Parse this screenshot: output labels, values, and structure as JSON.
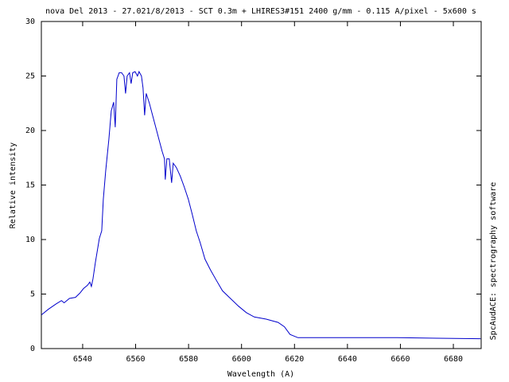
{
  "chart_data": {
    "type": "line",
    "title": "nova Del 2013 - 27.021/8/2013 - SCT 0.3m + LHIRES3#151 2400 g/mm - 0.115 A/pixel - 5x600 s",
    "x_label": "Wavelength (A)",
    "y_label": "Relative intensity",
    "side_note": "SpcAudACE: spectrography software",
    "x": [
      6524.5,
      6527,
      6530,
      6532,
      6533,
      6535,
      6537.3,
      6539,
      6540.3,
      6541.8,
      6542.7,
      6543.3,
      6543.9,
      6544.8,
      6546.3,
      6547.2,
      6547.8,
      6548.7,
      6549.9,
      6550.8,
      6551.7,
      6552.3,
      6552.9,
      6553.8,
      6554.7,
      6555.6,
      6556.2,
      6556.8,
      6557.7,
      6558.3,
      6558.9,
      6559.8,
      6560.7,
      6561.3,
      6562.2,
      6562.8,
      6563.4,
      6564.0,
      6565.2,
      6566.4,
      6567.6,
      6568.8,
      6570,
      6570.9,
      6571.2,
      6571.8,
      6572.7,
      6573.6,
      6574.2,
      6575.4,
      6576.9,
      6578.4,
      6579.9,
      6581.4,
      6582.9,
      6584.4,
      6586.2,
      6588.3,
      6590.4,
      6592.8,
      6595.8,
      6598.8,
      6601.8,
      6604.8,
      6609.3,
      6613.8,
      6616.2,
      6618.3,
      6621.3,
      6628.8,
      6643.8,
      6658.8,
      6673.8,
      6690.3
    ],
    "series": [
      {
        "name": "spectrum",
        "color": "#0000cc",
        "values": [
          3.1,
          3.6,
          4.1,
          4.4,
          4.2,
          4.6,
          4.7,
          5.1,
          5.5,
          5.8,
          6.1,
          5.7,
          6.4,
          7.9,
          10.1,
          10.8,
          13.7,
          16.3,
          19.2,
          21.8,
          22.6,
          20.3,
          24.7,
          25.3,
          25.3,
          25.0,
          23.4,
          25.0,
          25.3,
          24.3,
          25.3,
          25.4,
          25.0,
          25.4,
          25.0,
          23.9,
          21.4,
          23.4,
          22.5,
          21.4,
          20.3,
          19.2,
          18.1,
          17.4,
          15.5,
          17.4,
          17.4,
          15.2,
          17.0,
          16.6,
          15.8,
          14.8,
          13.7,
          12.3,
          10.8,
          9.7,
          8.2,
          7.2,
          6.3,
          5.3,
          4.6,
          3.9,
          3.3,
          2.9,
          2.7,
          2.4,
          2.0,
          1.3,
          1.0,
          1.0,
          1.0,
          1.0,
          0.95,
          0.9
        ]
      }
    ],
    "xlim": [
      6524.4,
      6690.5
    ],
    "ylim": [
      0,
      30
    ],
    "xticks": [
      6540,
      6560,
      6580,
      6600,
      6620,
      6640,
      6660,
      6680
    ],
    "yticks": [
      0,
      5,
      10,
      15,
      20,
      25,
      30
    ]
  }
}
